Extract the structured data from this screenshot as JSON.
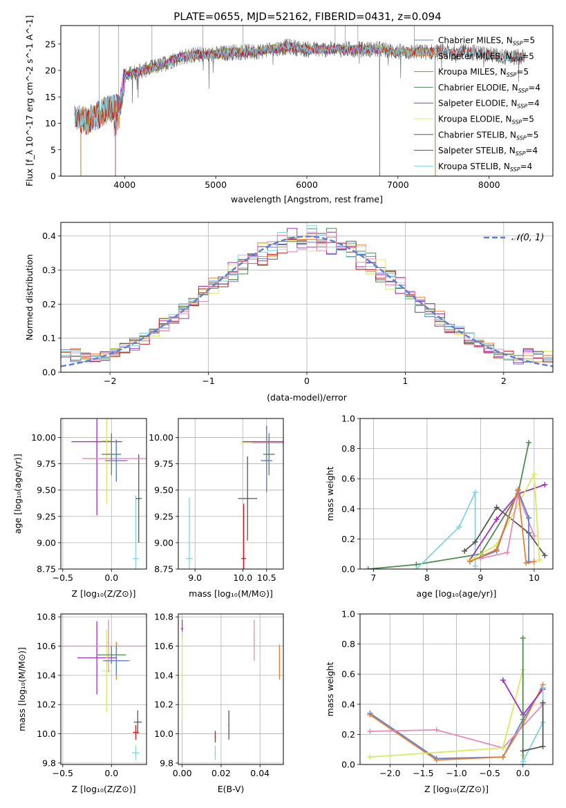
{
  "figure_title": "PLATE=0655, MJD=52162, FIBERID=0431, z=0.094",
  "colors": {
    "Chabrier MILES": "#5b7fd6",
    "Salpeter MILES": "#e87f2e",
    "Kroupa MILES": "#a0822a",
    "Chabrier ELODIE": "#4f8a4f",
    "Salpeter ELODIE": "#a12ec0",
    "Kroupa ELODIE": "#d8ec5a",
    "Chabrier STELIB": "#555555",
    "Salpeter STELIB": "#c41a1a",
    "Kroupa STELIB": "#7fd4e0",
    "pink": "#e889b8",
    "gaussian": "#5b7fd6"
  },
  "legend_spectrum": [
    {
      "name": "Chabrier MILES",
      "nssp": "5"
    },
    {
      "name": "Salpeter MILES",
      "nssp": "5"
    },
    {
      "name": "Kroupa MILES",
      "nssp": "5"
    },
    {
      "name": "Chabrier ELODIE",
      "nssp": "4"
    },
    {
      "name": "Salpeter ELODIE",
      "nssp": "4"
    },
    {
      "name": "Kroupa ELODIE",
      "nssp": "5"
    },
    {
      "name": "Chabrier STELIB",
      "nssp": "5"
    },
    {
      "name": "Salpeter STELIB",
      "nssp": "4"
    },
    {
      "name": "Kroupa STELIB",
      "nssp": "4"
    }
  ],
  "legend_prefix": "N",
  "legend_sub": "SSP",
  "legend_gauss": "𝒩(0, 1)",
  "chart_data": [
    {
      "id": "spectrum",
      "type": "line",
      "xlabel": "wavelength [Angstrom, rest frame]",
      "ylabel": "Flux [f_λ 10^-17 erg cm^-2 s^-1 A^-1]",
      "xlim": [
        3300,
        8700
      ],
      "ylim": [
        0,
        28.5
      ],
      "xticks": [
        4000,
        5000,
        6000,
        7000,
        8000
      ],
      "yticks": [
        0,
        5,
        10,
        15,
        20,
        25
      ],
      "grid": false,
      "continuum_x": [
        3450,
        3600,
        3800,
        3950,
        4000,
        4200,
        4400,
        4600,
        4800,
        5000,
        5200,
        5400,
        5600,
        5800,
        6000,
        6200,
        6400,
        6600,
        6800,
        7000,
        7200,
        7400,
        7600,
        7800,
        8000,
        8200,
        8400
      ],
      "continuum_y": [
        11,
        10.5,
        12.5,
        13,
        19,
        20,
        21,
        22.5,
        23,
        23,
        23.5,
        23.5,
        24,
        24.5,
        24,
        24,
        24,
        24,
        24,
        23.5,
        23.5,
        23.5,
        23.5,
        23.5,
        23,
        22.5,
        22.5
      ]
    },
    {
      "id": "residuals",
      "type": "line",
      "xlabel": "(data-model)/error",
      "ylabel": "Normed distribution",
      "xlim": [
        -2.5,
        2.5
      ],
      "ylim": [
        0,
        0.44
      ],
      "xticks": [
        -2,
        -1,
        0,
        1,
        2
      ],
      "yticks": [
        0.0,
        0.1,
        0.2,
        0.3,
        0.4
      ],
      "grid": true,
      "legend": "top-right"
    },
    {
      "id": "age-vs-Z",
      "type": "scatter",
      "xlabel": "Z [log10(Z/Z⊙)]",
      "ylabel": "age [log10(age/yr)]",
      "xlim": [
        -0.52,
        0.36
      ],
      "ylim": [
        8.75,
        10.18
      ],
      "xticks": [
        -0.5,
        0.0
      ],
      "yticks": [
        8.75,
        9.0,
        9.25,
        9.5,
        9.75,
        10.0
      ],
      "grid": true
    },
    {
      "id": "age-vs-mass",
      "type": "scatter",
      "xlabel": "mass [log10(M/M⊙)]",
      "ylabel": "",
      "xlim": [
        8.65,
        10.85
      ],
      "ylim": [
        8.75,
        10.18
      ],
      "xticks": [
        9.0,
        10.0,
        10.5
      ],
      "yticks": [
        8.75,
        9.0,
        9.25,
        9.5,
        9.75,
        10.0
      ],
      "grid": true
    },
    {
      "id": "weight-vs-age",
      "type": "line",
      "xlabel": "age [log10(age/yr)]",
      "ylabel": "mass weight",
      "xlim": [
        6.75,
        10.35
      ],
      "ylim": [
        0,
        1.0
      ],
      "xticks": [
        7,
        8,
        9,
        10
      ],
      "yticks": [
        0.0,
        0.2,
        0.4,
        0.6,
        0.8,
        1.0
      ],
      "grid": true
    },
    {
      "id": "mass-vs-Z",
      "type": "scatter",
      "xlabel": "Z [log10(Z/Z⊙)]",
      "ylabel": "mass [log10(M/M⊙)]",
      "xlim": [
        -0.52,
        0.36
      ],
      "ylim": [
        9.79,
        10.82
      ],
      "xticks": [
        -0.5,
        0.0
      ],
      "yticks": [
        9.8,
        10.0,
        10.2,
        10.4,
        10.6,
        10.8
      ],
      "grid": true
    },
    {
      "id": "mass-vs-ebv",
      "type": "scatter",
      "xlabel": "E(B-V)",
      "ylabel": "",
      "xlim": [
        -0.002,
        0.052
      ],
      "ylim": [
        9.79,
        10.82
      ],
      "xticks": [
        0.0,
        0.02,
        0.04
      ],
      "yticks": [
        9.8,
        10.0,
        10.2,
        10.4,
        10.6,
        10.8
      ],
      "grid": true
    },
    {
      "id": "weight-vs-Z",
      "type": "line",
      "xlabel": "Z [log10(Z/Z⊙)]",
      "ylabel": "mass weight",
      "xlim": [
        -2.45,
        0.45
      ],
      "ylim": [
        0,
        1.0
      ],
      "xticks": [
        -2.0,
        -1.5,
        -1.0,
        -0.5,
        0.0
      ],
      "yticks": [
        0.0,
        0.2,
        0.4,
        0.6,
        0.8,
        1.0
      ],
      "grid": true
    }
  ]
}
